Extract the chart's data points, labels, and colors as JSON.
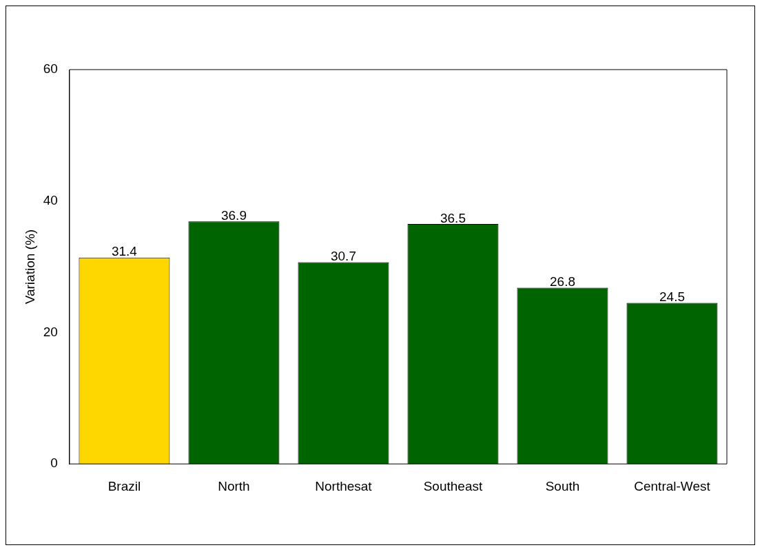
{
  "chart_data": {
    "type": "bar",
    "ylabel": "Variation (%)",
    "categories": [
      "Brazil",
      "North",
      "Northesat",
      "Southeast",
      "South",
      "Central-West"
    ],
    "values": [
      31.4,
      36.9,
      30.7,
      36.5,
      26.8,
      24.5
    ],
    "colors": [
      "#ffd700",
      "#006400",
      "#006400",
      "#006400",
      "#006400",
      "#006400"
    ],
    "ylim": [
      0,
      60
    ],
    "yticks": [
      0,
      20,
      40,
      60
    ],
    "grid": false,
    "data_labels": true
  }
}
